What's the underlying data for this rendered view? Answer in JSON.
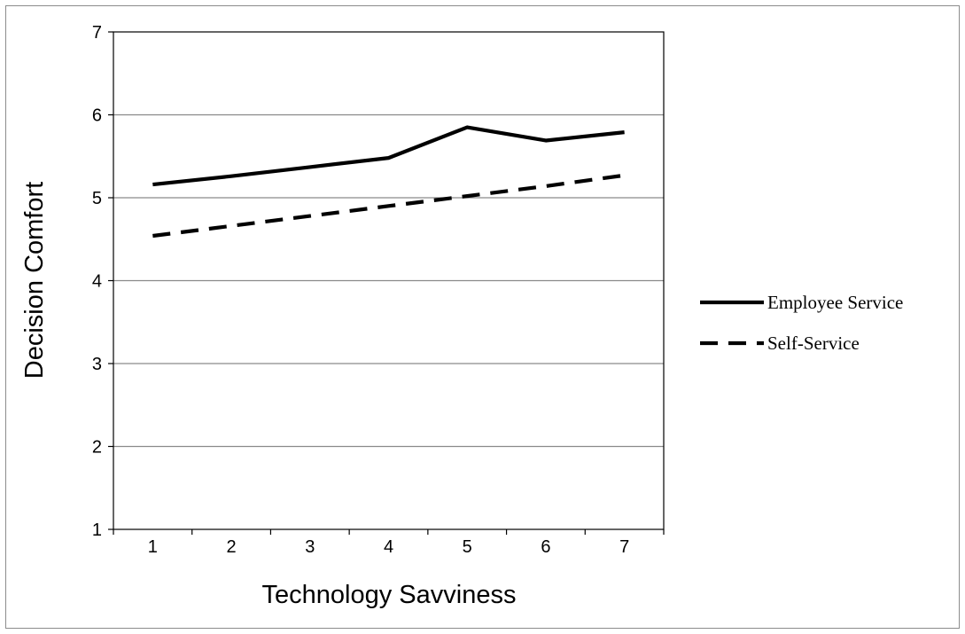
{
  "chart_data": {
    "type": "line",
    "title": "",
    "xlabel": "Technology Savviness",
    "ylabel": "Decision Comfort",
    "x": [
      1,
      2,
      3,
      4,
      5,
      6,
      7
    ],
    "ylim": [
      1,
      7
    ],
    "yticks": [
      "1",
      "2",
      "3",
      "4",
      "5",
      "6",
      "7"
    ],
    "xticks": [
      "1",
      "2",
      "3",
      "4",
      "5",
      "6",
      "7"
    ],
    "grid": "horizontal",
    "legend_position": "right",
    "series": [
      {
        "name": "Employee Service",
        "values": [
          5.16,
          5.26,
          5.37,
          5.48,
          5.85,
          5.69,
          5.79
        ],
        "style": "solid",
        "color": "#000000"
      },
      {
        "name": "Self-Service",
        "values": [
          4.54,
          4.66,
          4.78,
          4.9,
          5.02,
          5.14,
          5.27
        ],
        "style": "dashed",
        "color": "#000000"
      }
    ]
  }
}
